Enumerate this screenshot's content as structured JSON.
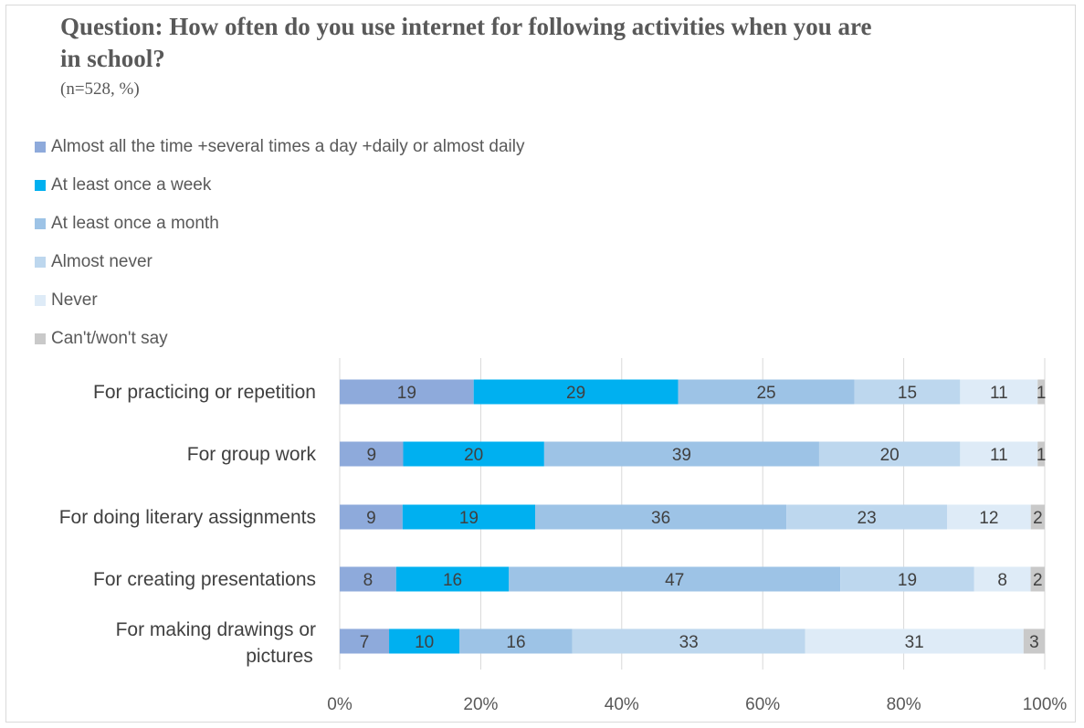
{
  "title": "Question: How often do you use internet for following activities when you are in school?",
  "subtitle": "(n=528, %)",
  "chart_data": {
    "type": "bar",
    "orientation": "horizontal",
    "stacked": "percent",
    "categories": [
      "For practicing or repetition",
      "For group work",
      "For doing literary assignments",
      "For creating presentations",
      "For making drawings or pictures"
    ],
    "series": [
      {
        "name": "Almost all the time +several times a day +daily or almost daily",
        "color": "#8eaadb",
        "values": [
          19,
          9,
          9,
          8,
          7
        ]
      },
      {
        "name": "At least once a week",
        "color": "#00b0f0",
        "values": [
          29,
          20,
          19,
          16,
          10
        ]
      },
      {
        "name": "At least once a month",
        "color": "#9dc3e6",
        "values": [
          25,
          39,
          36,
          47,
          16
        ]
      },
      {
        "name": "Almost never",
        "color": "#bdd7ee",
        "values": [
          15,
          20,
          23,
          19,
          33
        ]
      },
      {
        "name": "Never",
        "color": "#deebf7",
        "values": [
          11,
          11,
          12,
          8,
          31
        ]
      },
      {
        "name": "Can't/won't say",
        "color": "#c9c9c9",
        "values": [
          1,
          1,
          2,
          2,
          3
        ]
      }
    ],
    "x_ticks": [
      "0%",
      "20%",
      "40%",
      "60%",
      "80%",
      "100%"
    ],
    "xlim": [
      0,
      100
    ],
    "grid": "vertical",
    "legend_position": "top-left"
  }
}
